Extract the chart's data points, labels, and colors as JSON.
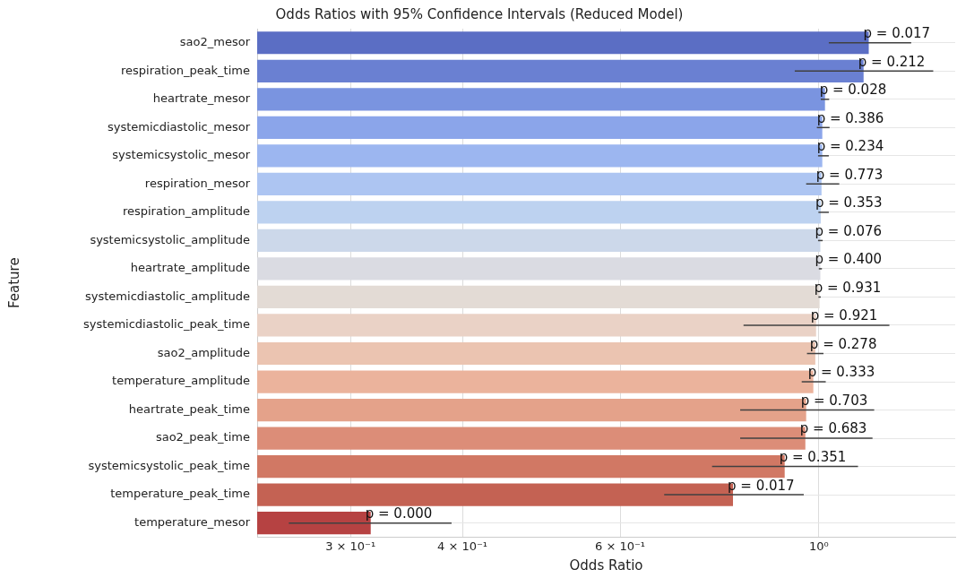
{
  "chart_data": {
    "type": "bar",
    "orientation": "horizontal",
    "title": "Odds Ratios with 95% Confidence Intervals (Reduced Model)",
    "xlabel": "Odds Ratio",
    "ylabel": "Feature",
    "categories": [
      "sao2_mesor",
      "respiration_peak_time",
      "heartrate_mesor",
      "systemicdiastolic_mesor",
      "systemicsystolic_mesor",
      "respiration_mesor",
      "respiration_amplitude",
      "systemicsystolic_amplitude",
      "heartrate_amplitude",
      "systemicdiastolic_amplitude",
      "systemicdiastolic_peak_time",
      "sao2_amplitude",
      "temperature_amplitude",
      "heartrate_peak_time",
      "sao2_peak_time",
      "systemicsystolic_peak_time",
      "temperature_peak_time",
      "temperature_mesor"
    ],
    "values": [
      1.137,
      1.122,
      1.016,
      1.009,
      1.009,
      1.007,
      1.005,
      1.004,
      1.004,
      1.002,
      0.993,
      0.991,
      0.986,
      0.968,
      0.966,
      0.916,
      0.802,
      0.316
    ],
    "errors": [
      [
        1.026,
        1.268
      ],
      [
        0.94,
        1.342
      ],
      [
        1.005,
        1.027
      ],
      [
        0.995,
        1.028
      ],
      [
        0.998,
        1.026
      ],
      [
        0.968,
        1.054
      ],
      [
        0.999,
        1.026
      ],
      [
        0.998,
        1.01
      ],
      [
        1.0,
        1.008
      ],
      [
        0.999,
        1.005
      ],
      [
        0.824,
        1.199
      ],
      [
        0.97,
        1.012
      ],
      [
        0.957,
        1.018
      ],
      [
        0.817,
        1.153
      ],
      [
        0.817,
        1.148
      ],
      [
        0.76,
        1.106
      ],
      [
        0.672,
        0.962
      ],
      [
        0.256,
        0.389
      ]
    ],
    "annotations": [
      {
        "text": "p = 0.017",
        "x": 1.137,
        "y": "sao2_mesor"
      },
      {
        "text": "p = 0.212",
        "x": 1.122,
        "y": "respiration_peak_time"
      },
      {
        "text": "p = 0.028",
        "x": 1.016,
        "y": "heartrate_mesor"
      },
      {
        "text": "p = 0.386",
        "x": 1.009,
        "y": "systemicdiastolic_mesor"
      },
      {
        "text": "p = 0.234",
        "x": 1.009,
        "y": "systemicsystolic_mesor"
      },
      {
        "text": "p = 0.773",
        "x": 1.007,
        "y": "respiration_mesor"
      },
      {
        "text": "p = 0.353",
        "x": 1.005,
        "y": "respiration_amplitude"
      },
      {
        "text": "p = 0.076",
        "x": 1.004,
        "y": "systemicsystolic_amplitude"
      },
      {
        "text": "p = 0.400",
        "x": 1.004,
        "y": "heartrate_amplitude"
      },
      {
        "text": "p = 0.931",
        "x": 1.002,
        "y": "systemicdiastolic_amplitude"
      },
      {
        "text": "p = 0.921",
        "x": 0.993,
        "y": "systemicdiastolic_peak_time"
      },
      {
        "text": "p = 0.278",
        "x": 0.991,
        "y": "sao2_amplitude"
      },
      {
        "text": "p = 0.333",
        "x": 0.986,
        "y": "temperature_amplitude"
      },
      {
        "text": "p = 0.703",
        "x": 0.968,
        "y": "heartrate_peak_time"
      },
      {
        "text": "p = 0.683",
        "x": 0.966,
        "y": "sao2_peak_time"
      },
      {
        "text": "p = 0.351",
        "x": 0.916,
        "y": "systemicsystolic_peak_time"
      },
      {
        "text": "p = 0.017",
        "x": 0.802,
        "y": "temperature_peak_time"
      },
      {
        "text": "p = 0.000",
        "x": 0.316,
        "y": "temperature_mesor"
      }
    ],
    "colors": [
      "#5b6ec4",
      "#6a80d2",
      "#7a94e0",
      "#8ba5ea",
      "#9cb6f0",
      "#adc5f2",
      "#bdd2f0",
      "#ccd8ea",
      "#dadbe2",
      "#e3dbd5",
      "#ead2c6",
      "#ebc4b1",
      "#ebb39c",
      "#e4a28a",
      "#dc8d78",
      "#d17864",
      "#c46253",
      "#b64242"
    ],
    "log": "x",
    "xlim": [
      0.236,
      1.42
    ],
    "xticks": [
      {
        "value": 0.3,
        "label": "3 × 10⁻¹"
      },
      {
        "value": 0.4,
        "label": "4 × 10⁻¹"
      },
      {
        "value": 0.6,
        "label": "6 × 10⁻¹"
      },
      {
        "value": 1,
        "label": "10⁰"
      }
    ],
    "grid": true,
    "legend": false
  }
}
